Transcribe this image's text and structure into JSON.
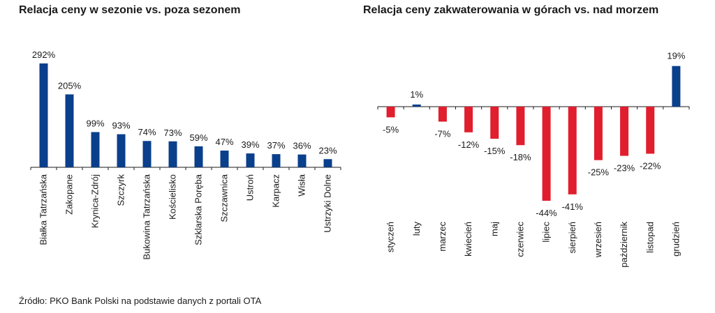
{
  "chart_data": [
    {
      "type": "bar",
      "title": "Relacja ceny w sezonie vs. poza sezonem",
      "categories": [
        "Białka Tatrzańska",
        "Zakopane",
        "Krynica-Zdrój",
        "Szczyrk",
        "Bukowina Tatrzańska",
        "Kościelisko",
        "Szklarska Poręba",
        "Szczawnica",
        "Ustroń",
        "Karpacz",
        "Wisła",
        "Ustrzyki Dolne"
      ],
      "values": [
        292,
        205,
        99,
        93,
        74,
        73,
        59,
        47,
        39,
        37,
        36,
        23
      ],
      "labels": [
        "292%",
        "205%",
        "99%",
        "93%",
        "74%",
        "73%",
        "59%",
        "47%",
        "39%",
        "37%",
        "36%",
        "23%"
      ],
      "unit": "%",
      "ylim": [
        0,
        292
      ],
      "grid": false,
      "bar_color": "#0a3f8c"
    },
    {
      "type": "bar",
      "title": "Relacja ceny zakwaterowania w górach vs. nad morzem",
      "categories": [
        "styczeń",
        "luty",
        "marzec",
        "kwiecień",
        "maj",
        "czerwiec",
        "lipiec",
        "sierpień",
        "wrzesień",
        "październik",
        "listopad",
        "grudzień"
      ],
      "values": [
        -5,
        1,
        -7,
        -12,
        -15,
        -18,
        -44,
        -41,
        -25,
        -23,
        -22,
        19
      ],
      "labels": [
        "-5%",
        "1%",
        "-7%",
        "-12%",
        "-15%",
        "-18%",
        "-44%",
        "-41%",
        "-25%",
        "-23%",
        "-22%",
        "19%"
      ],
      "unit": "%",
      "ylim": [
        -44,
        19
      ],
      "grid": false,
      "positive_color": "#0a3f8c",
      "negative_color": "#e01e2e"
    }
  ],
  "source": "Źródło: PKO Bank Polski na podstawie danych z portali OTA"
}
